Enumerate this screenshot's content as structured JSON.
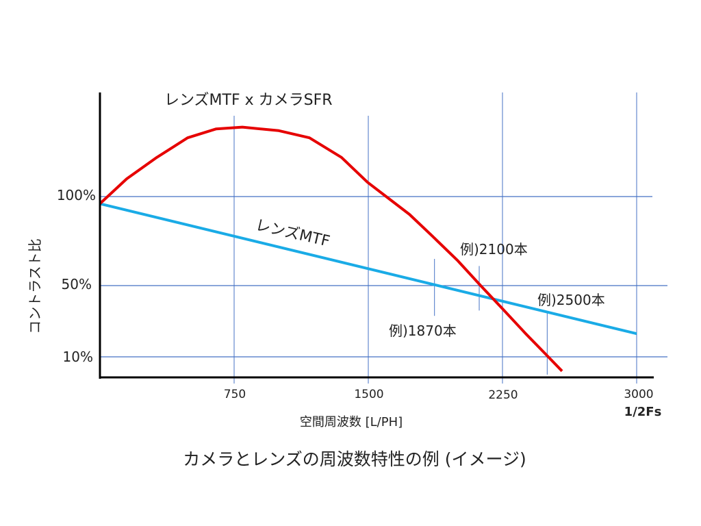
{
  "chart_data": {
    "type": "line",
    "title": "カメラとレンズの周波数特性の例 (イメージ)",
    "xlabel": "空間周波数 [L/PH]",
    "ylabel": "コントラスト比",
    "xlim": [
      0,
      3000
    ],
    "ylim": [
      0,
      158
    ],
    "x_ticks": [
      750,
      1500,
      2250,
      3000
    ],
    "x_tick_labels": [
      "750",
      "1500",
      "2250",
      "3000"
    ],
    "x_extra_label": "1/2Fs",
    "y_ticks": [
      100,
      50,
      10
    ],
    "y_tick_labels": [
      "100%",
      "50%",
      "10%"
    ],
    "grid": true,
    "colors": {
      "axis": "#000000",
      "grid": "#4472c4",
      "red": "#e60000",
      "blue": "#1aabe6"
    },
    "series": [
      {
        "name": "レンズMTF x カメラSFR",
        "color": "#e60000",
        "points": [
          [
            0,
            96
          ],
          [
            150,
            110
          ],
          [
            318,
            122
          ],
          [
            490,
            133
          ],
          [
            650,
            138
          ],
          [
            796,
            139
          ],
          [
            1000,
            137
          ],
          [
            1171,
            133
          ],
          [
            1350,
            122
          ],
          [
            1496,
            108
          ],
          [
            1600,
            100
          ],
          [
            1730,
            90
          ],
          [
            1856,
            78
          ],
          [
            2000,
            64
          ],
          [
            2128,
            50
          ],
          [
            2250,
            37
          ],
          [
            2380,
            23
          ],
          [
            2506,
            10
          ],
          [
            2583,
            2
          ]
        ]
      },
      {
        "name": "レンズMTF",
        "color": "#1aabe6",
        "points": [
          [
            0,
            96
          ],
          [
            3000,
            23
          ]
        ]
      }
    ],
    "annotations": [
      {
        "text": "例)1870本",
        "x": 1870,
        "y_range": [
          33,
          65
        ]
      },
      {
        "text": "例)2100本",
        "x": 2120,
        "y_range": [
          36,
          61
        ]
      },
      {
        "text": "例)2500本",
        "x": 2500,
        "y_range": [
          0,
          35
        ]
      }
    ]
  }
}
